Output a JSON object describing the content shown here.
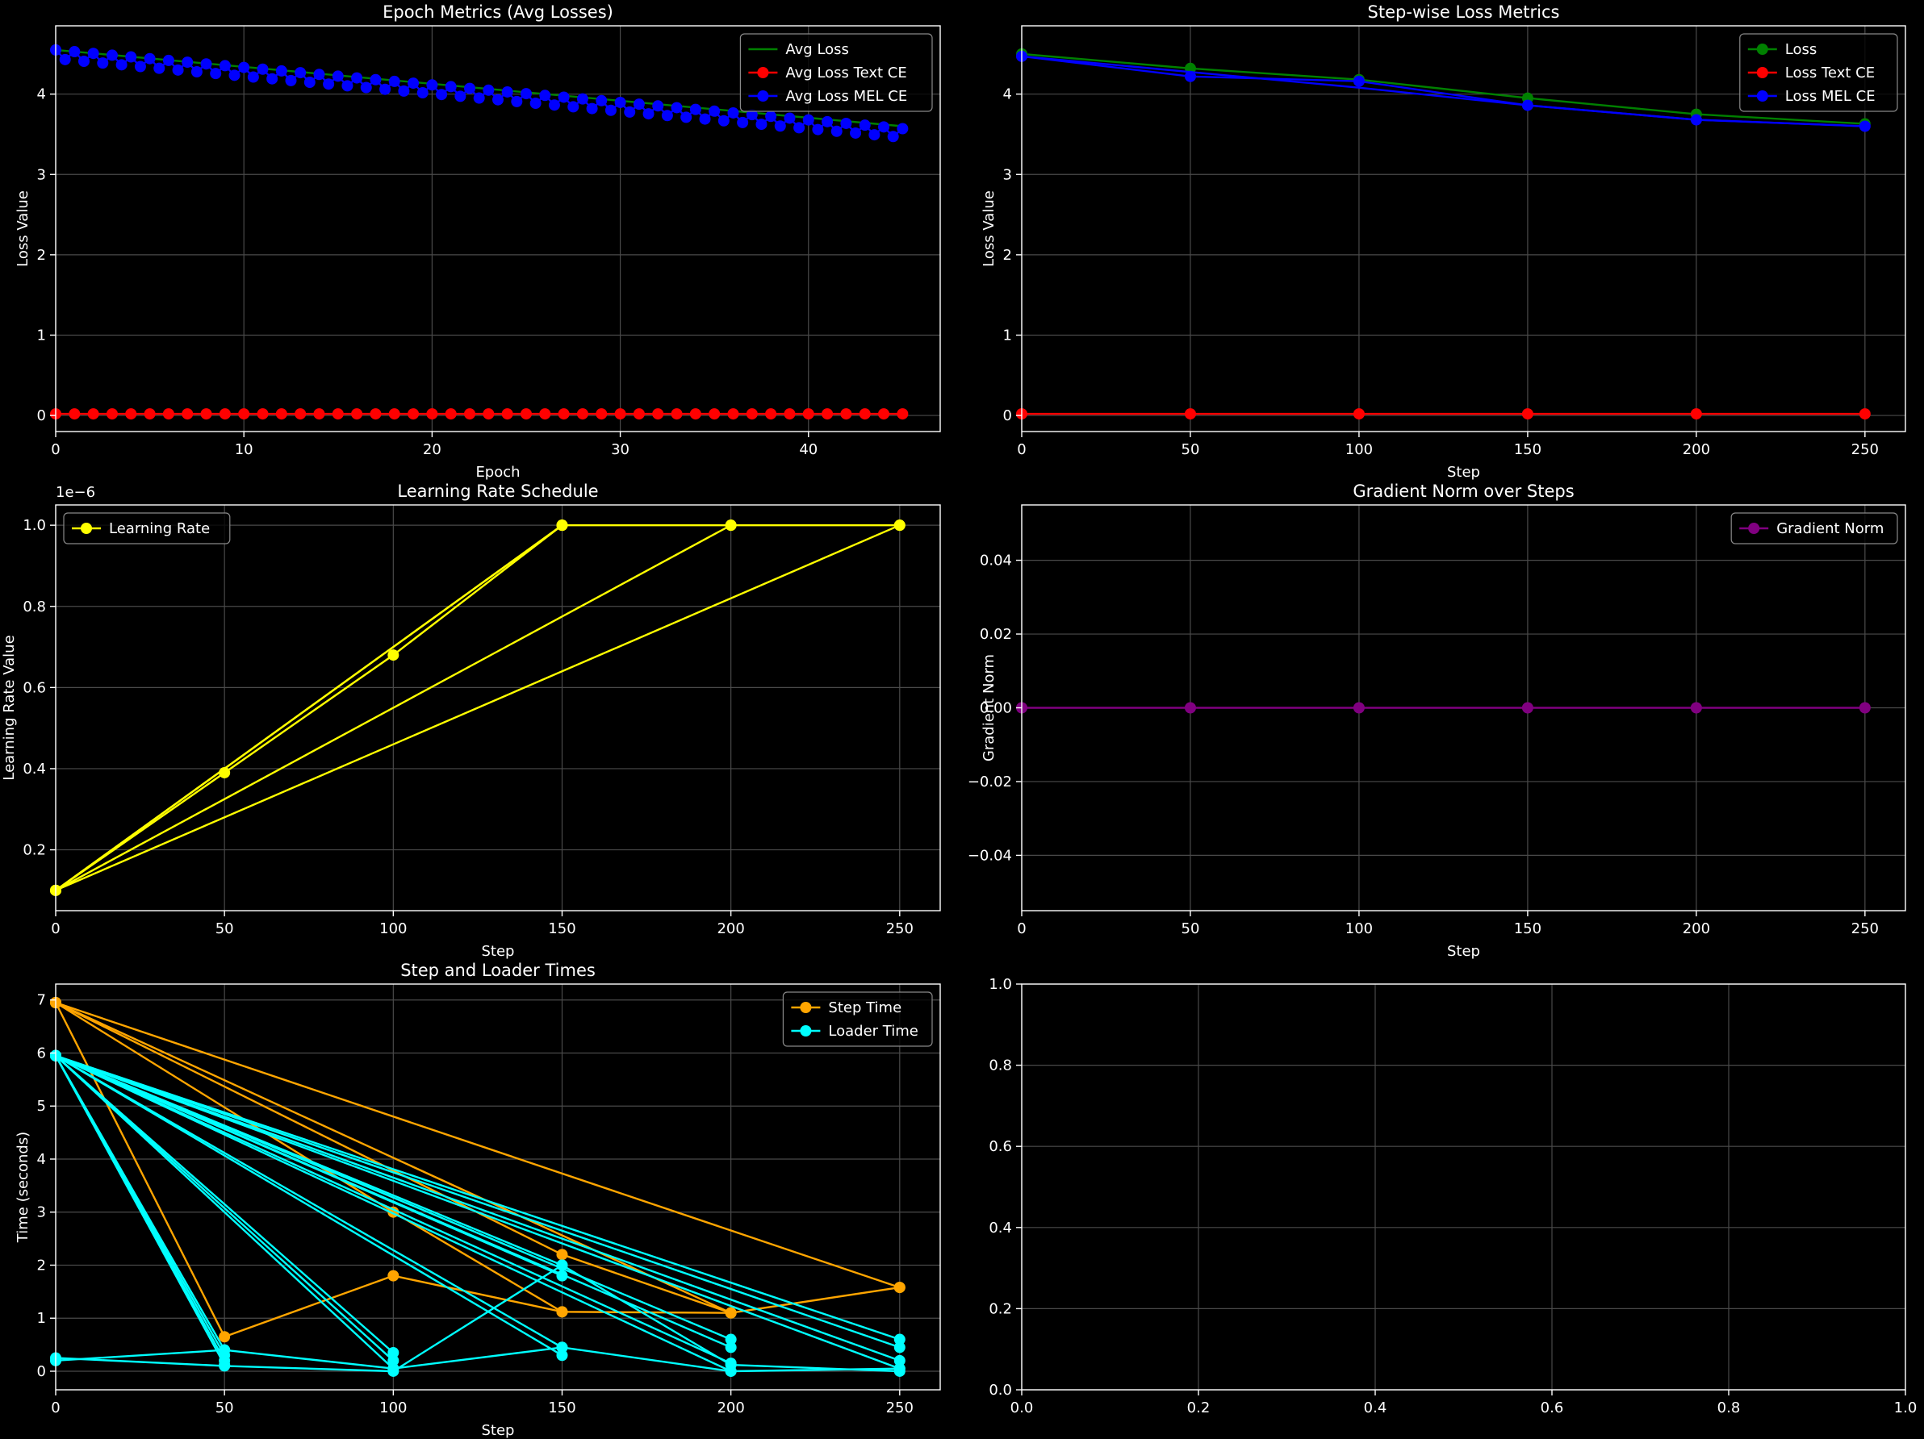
{
  "chart_data": [
    {
      "type": "line",
      "title": "Epoch Metrics (Avg Losses)",
      "xlabel": "Epoch",
      "ylabel": "Loss Value",
      "xlim": [
        0,
        47
      ],
      "ylim": [
        -0.2,
        4.85
      ],
      "xticks": [
        0,
        10,
        20,
        30,
        40
      ],
      "yticks": [
        0,
        1,
        2,
        3,
        4
      ],
      "grid": true,
      "legend": "top-right",
      "series": [
        {
          "name": "Avg Loss",
          "color": "#008000",
          "linestyle": "solid",
          "x": [
            0,
            45
          ],
          "y": [
            4.55,
            3.6
          ]
        },
        {
          "name": "Avg Loss Text CE",
          "color": "#ff0000",
          "marker": true,
          "generator": "flat",
          "count": 46,
          "value": 0.02
        },
        {
          "name": "Avg Loss MEL CE",
          "color": "#0000ff",
          "marker": true,
          "generator": "sawtooth",
          "count": 46,
          "start": 4.55,
          "end": 3.57,
          "drop": 0.12
        }
      ]
    },
    {
      "type": "line",
      "title": "Step-wise Loss Metrics",
      "xlabel": "Step",
      "ylabel": "Loss Value",
      "xlim": [
        0,
        262
      ],
      "ylim": [
        -0.2,
        4.85
      ],
      "xticks": [
        0,
        50,
        100,
        150,
        200,
        250
      ],
      "yticks": [
        0,
        1,
        2,
        3,
        4
      ],
      "grid": true,
      "legend": "top-right",
      "series": [
        {
          "name": "Loss",
          "color": "#008000",
          "marker": true,
          "x": [
            0,
            50,
            100,
            150,
            200,
            250
          ],
          "y": [
            4.5,
            4.32,
            4.18,
            3.95,
            3.75,
            3.63
          ]
        },
        {
          "name": "Loss Text CE",
          "color": "#ff0000",
          "marker": true,
          "x": [
            0,
            50,
            100,
            150,
            200,
            250
          ],
          "y": [
            0.02,
            0.02,
            0.02,
            0.02,
            0.02,
            0.02
          ]
        },
        {
          "name": "Loss MEL CE",
          "color": "#0000ff",
          "marker": true,
          "x": [
            0,
            50,
            100,
            150,
            200,
            250
          ],
          "y": [
            4.47,
            4.22,
            4.16,
            3.86,
            3.68,
            3.6
          ]
        },
        {
          "name": "",
          "color": "#0000ff",
          "marker": false,
          "x": [
            0,
            100,
            150,
            200,
            250
          ],
          "y": [
            4.47,
            4.08,
            3.86,
            3.68,
            3.6
          ]
        }
      ]
    },
    {
      "type": "line",
      "title": "Learning Rate Schedule",
      "xlabel": "Step",
      "ylabel": "Learning Rate Value",
      "offset_label": "1e−6",
      "xlim": [
        0,
        262
      ],
      "ylim": [
        0.05,
        1.05
      ],
      "xticks": [
        0,
        50,
        100,
        150,
        200,
        250
      ],
      "yticks": [
        0.2,
        0.4,
        0.6,
        0.8,
        1.0
      ],
      "ytick_labels": [
        "0.2",
        "0.4",
        "0.6",
        "0.8",
        "1.0"
      ],
      "grid": true,
      "legend": "top-left",
      "series": [
        {
          "name": "Learning Rate",
          "color": "#ffff00",
          "marker": true,
          "segments": [
            {
              "x": [
                0,
                50,
                100,
                150
              ],
              "y": [
                0.1,
                0.39,
                0.68,
                1.0
              ]
            },
            {
              "x": [
                0,
                150
              ],
              "y": [
                0.1,
                1.0
              ]
            },
            {
              "x": [
                0,
                150,
                200
              ],
              "y": [
                0.1,
                1.0,
                1.0
              ]
            },
            {
              "x": [
                0,
                200,
                250
              ],
              "y": [
                0.1,
                1.0,
                1.0
              ]
            },
            {
              "x": [
                0,
                250
              ],
              "y": [
                0.1,
                1.0
              ]
            }
          ]
        }
      ]
    },
    {
      "type": "line",
      "title": "Gradient Norm over Steps",
      "xlabel": "Step",
      "ylabel": "Gradient Norm",
      "xlim": [
        0,
        262
      ],
      "ylim": [
        -0.055,
        0.055
      ],
      "xticks": [
        0,
        50,
        100,
        150,
        200,
        250
      ],
      "yticks": [
        -0.04,
        -0.02,
        0.0,
        0.02,
        0.04
      ],
      "ytick_labels": [
        "−0.04",
        "−0.02",
        "0.00",
        "0.02",
        "0.04"
      ],
      "grid": true,
      "legend": "top-right",
      "series": [
        {
          "name": "Gradient Norm",
          "color": "#800080",
          "marker": true,
          "x": [
            0,
            50,
            100,
            150,
            200,
            250
          ],
          "y": [
            0,
            0,
            0,
            0,
            0,
            0
          ]
        }
      ]
    },
    {
      "type": "line",
      "title": "Step and Loader Times",
      "xlabel": "Step",
      "ylabel": "Time (seconds)",
      "xlim": [
        0,
        262
      ],
      "ylim": [
        -0.35,
        7.3
      ],
      "xticks": [
        0,
        50,
        100,
        150,
        200,
        250
      ],
      "yticks": [
        0,
        1,
        2,
        3,
        4,
        5,
        6,
        7
      ],
      "grid": true,
      "legend": "top-right",
      "series": [
        {
          "name": "Step Time",
          "color": "#ffa500",
          "marker": true,
          "segments": [
            {
              "x": [
                0,
                50,
                100,
                150,
                200,
                250
              ],
              "y": [
                6.95,
                0.65,
                1.8,
                1.12,
                1.1,
                1.58
              ]
            },
            {
              "x": [
                0,
                100,
                150
              ],
              "y": [
                6.95,
                3.0,
                1.12
              ]
            },
            {
              "x": [
                0,
                200
              ],
              "y": [
                6.95,
                1.1
              ]
            },
            {
              "x": [
                0,
                150,
                200
              ],
              "y": [
                6.95,
                2.2,
                1.1
              ]
            },
            {
              "x": [
                0,
                250
              ],
              "y": [
                6.95,
                1.58
              ]
            }
          ]
        },
        {
          "name": "Loader Time",
          "color": "#00ffff",
          "marker": true,
          "segments": [
            {
              "x": [
                0,
                50
              ],
              "y": [
                5.95,
                0.4
              ]
            },
            {
              "x": [
                0,
                50
              ],
              "y": [
                5.95,
                0.3
              ]
            },
            {
              "x": [
                0,
                50
              ],
              "y": [
                5.95,
                0.2
              ]
            },
            {
              "x": [
                0,
                50
              ],
              "y": [
                5.95,
                0.12
              ]
            },
            {
              "x": [
                0,
                100
              ],
              "y": [
                5.95,
                0.35
              ]
            },
            {
              "x": [
                0,
                100
              ],
              "y": [
                5.95,
                0.2
              ]
            },
            {
              "x": [
                0,
                100
              ],
              "y": [
                5.95,
                0.05
              ]
            },
            {
              "x": [
                0,
                150
              ],
              "y": [
                5.95,
                0.45
              ]
            },
            {
              "x": [
                0,
                150
              ],
              "y": [
                5.95,
                0.3
              ]
            },
            {
              "x": [
                0,
                150
              ],
              "y": [
                5.95,
                2.0
              ]
            },
            {
              "x": [
                0,
                150
              ],
              "y": [
                5.95,
                1.8
              ]
            },
            {
              "x": [
                0,
                200
              ],
              "y": [
                5.95,
                0.6
              ]
            },
            {
              "x": [
                0,
                200
              ],
              "y": [
                5.95,
                0.45
              ]
            },
            {
              "x": [
                0,
                200
              ],
              "y": [
                5.95,
                0.15
              ]
            },
            {
              "x": [
                0,
                200
              ],
              "y": [
                5.95,
                0.0
              ]
            },
            {
              "x": [
                0,
                250
              ],
              "y": [
                5.95,
                0.6
              ]
            },
            {
              "x": [
                0,
                250
              ],
              "y": [
                5.95,
                0.45
              ]
            },
            {
              "x": [
                0,
                250
              ],
              "y": [
                5.95,
                0.2
              ]
            },
            {
              "x": [
                0,
                250
              ],
              "y": [
                5.95,
                0.05
              ]
            },
            {
              "x": [
                0,
                50,
                100,
                150,
                200,
                250
              ],
              "y": [
                0.25,
                0.1,
                0.0,
                2.0,
                0.12,
                0.0
              ]
            },
            {
              "x": [
                0,
                50,
                100,
                150,
                200,
                250
              ],
              "y": [
                0.2,
                0.4,
                0.05,
                0.45,
                0.0,
                0.05
              ]
            }
          ]
        }
      ]
    },
    {
      "type": "line",
      "title": "",
      "xlabel": "",
      "ylabel": "",
      "xlim": [
        0,
        1
      ],
      "ylim": [
        0,
        1
      ],
      "xticks": [
        0,
        0.2,
        0.4,
        0.6,
        0.8,
        1.0
      ],
      "xtick_labels": [
        "0.0",
        "0.2",
        "0.4",
        "0.6",
        "0.8",
        "1.0"
      ],
      "yticks": [
        0,
        0.2,
        0.4,
        0.6,
        0.8,
        1.0
      ],
      "ytick_labels": [
        "0.0",
        "0.2",
        "0.4",
        "0.6",
        "0.8",
        "1.0"
      ],
      "grid": true,
      "legend": "none",
      "series": []
    }
  ]
}
